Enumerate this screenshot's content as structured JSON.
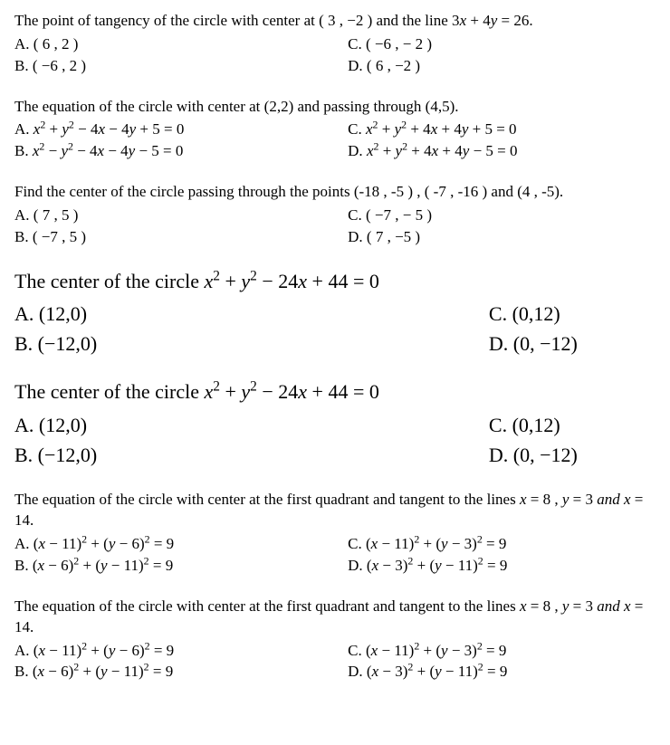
{
  "questions": [
    {
      "size": "normal",
      "text": "The point of tangency of the circle with center at ( 3 , −2 ) and the line 3<i>x</i> + 4<i>y</i> = 26.",
      "options": {
        "A": "( 6 , 2 )",
        "B": "( −6 , 2 )",
        "C": "( −6 , − 2 )",
        "D": "( 6 , −2 )"
      },
      "layout": "right-shift"
    },
    {
      "size": "normal",
      "text": "The equation of the circle with center at (2,2) and passing through (4,5).",
      "options": {
        "A": "<i>x</i><sup>2</sup> + <i>y</i><sup>2</sup> − 4<i>x</i> − 4<i>y</i> + 5 = 0",
        "B": "<i>x</i><sup>2</sup> − <i>y</i><sup>2</sup> − 4<i>x</i> − 4<i>y</i> − 5 = 0",
        "C": "<i>x</i><sup>2</sup> + <i>y</i><sup>2</sup> + 4<i>x</i> + 4<i>y</i> + 5 = 0",
        "D": "<i>x</i><sup>2</sup> + <i>y</i><sup>2</sup> + 4<i>x</i> + 4<i>y</i> − 5 = 0"
      },
      "layout": "wide"
    },
    {
      "size": "normal",
      "text": "Find the center of the circle passing through the points (-18 , -5 ) , ( -7 , -16 ) and (4 , -5).",
      "options": {
        "A": "( 7 , 5 )",
        "B": "( −7 , 5 )",
        "C": "( −7 , − 5 )",
        "D": "( 7 , −5 )"
      },
      "layout": "right-shift"
    },
    {
      "size": "large",
      "text": "The center of the circle <i>x</i><sup>2</sup> + <i>y</i><sup>2</sup> − 24<i>x</i> + 44 = 0",
      "options": {
        "A": "(12,0)",
        "B": "(−12,0)",
        "C": "(0,12)",
        "D": "(0, −12)"
      },
      "layout": "large"
    },
    {
      "size": "large",
      "text": "The center of the circle <i>x</i><sup>2</sup> + <i>y</i><sup>2</sup> − 24<i>x</i> + 44 = 0",
      "options": {
        "A": "(12,0)",
        "B": "(−12,0)",
        "C": "(0,12)",
        "D": "(0, −12)"
      },
      "layout": "large"
    },
    {
      "size": "normal",
      "text": "The equation of the circle with center at the first quadrant and tangent to the lines <i>x</i> = 8 , <i>y</i> = 3 <i>and x</i> = 14.",
      "options": {
        "A": "(<i>x</i> − 11)<sup>2</sup> + (<i>y</i> − 6)<sup>2</sup> = 9",
        "B": "(<i>x</i> − 6)<sup>2</sup> + (<i>y</i> − 11)<sup>2</sup> = 9",
        "C": "(<i>x</i> − 11)<sup>2</sup> + (<i>y</i> − 3)<sup>2</sup> = 9",
        "D": "(<i>x</i> − 3)<sup>2</sup> + (<i>y</i> − 11)<sup>2</sup> = 9"
      },
      "layout": "normal"
    },
    {
      "size": "normal",
      "text": "The equation of the circle with center at the first quadrant and tangent to the lines <i>x</i> = 8 , <i>y</i> = 3 <i>and x</i> = 14.",
      "options": {
        "A": "(<i>x</i> − 11)<sup>2</sup> + (<i>y</i> − 6)<sup>2</sup> = 9",
        "B": "(<i>x</i> − 6)<sup>2</sup> + (<i>y</i> − 11)<sup>2</sup> = 9",
        "C": "(<i>x</i> − 11)<sup>2</sup> + (<i>y</i> − 3)<sup>2</sup> = 9",
        "D": "(<i>x</i> − 3)<sup>2</sup> + (<i>y</i> − 11)<sup>2</sup> = 9"
      },
      "layout": "normal"
    }
  ]
}
